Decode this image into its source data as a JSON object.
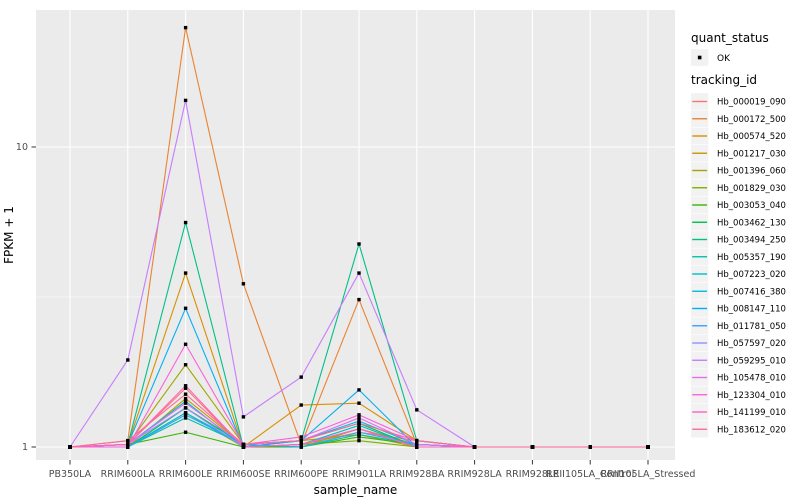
{
  "figure": {
    "background": "#FFFFFF",
    "panel_background": "#EBEBEB",
    "grid_color": "#FFFFFF",
    "tick_mark_color": "#333333",
    "tick_label_color": "#4D4D4D",
    "axis_title_color": "#000000",
    "point_color": "#000000",
    "legend_key_background": "#F2F2F2"
  },
  "chart_data": {
    "type": "line",
    "title": "",
    "xlabel": "sample_name",
    "ylabel": "FPKM + 1",
    "y_scale": "log10",
    "y_ticks": [
      1,
      10
    ],
    "y_minor_ticks": [
      3.1623
    ],
    "ylim": [
      0.905,
      28.5
    ],
    "grid": true,
    "legend_position": "right",
    "legend": {
      "quant_status_title": "quant_status",
      "quant_status_items": [
        {
          "label": "OK",
          "marker": "black-square"
        }
      ],
      "tracking_id_title": "tracking_id"
    },
    "categories": [
      "PB350LA",
      "RRIM600LA",
      "RRIM600LE",
      "RRIM600SE",
      "RRIM600PE",
      "RRIM901LA",
      "RRIM928BA",
      "RRIM928LA",
      "RRIM928LE",
      "RRII105LA_Control",
      "RRII105LA_Stressed"
    ],
    "series": [
      {
        "name": "Hb_000019_090",
        "color": "#F8766D",
        "values": [
          1,
          1.02,
          1.57,
          1,
          1.02,
          1.12,
          1.05,
          1,
          1,
          1,
          1
        ]
      },
      {
        "name": "Hb_000172_500",
        "color": "#EA8331",
        "values": [
          1,
          1.05,
          25,
          3.5,
          1.02,
          3.1,
          1.02,
          1,
          1,
          1,
          1
        ]
      },
      {
        "name": "Hb_000574_520",
        "color": "#D89000",
        "values": [
          1,
          1.02,
          3.8,
          1,
          1.38,
          1.4,
          1.05,
          1,
          1,
          1,
          1
        ]
      },
      {
        "name": "Hb_001217_030",
        "color": "#C09B00",
        "values": [
          1,
          1,
          1.45,
          1.02,
          1.05,
          1.1,
          1,
          1,
          1,
          1,
          1
        ]
      },
      {
        "name": "Hb_001396_060",
        "color": "#A3A500",
        "values": [
          1,
          1.02,
          1.88,
          1.02,
          1,
          1.15,
          1.02,
          1,
          1,
          1,
          1
        ]
      },
      {
        "name": "Hb_001829_030",
        "color": "#7CAE00",
        "values": [
          1,
          1,
          1.3,
          1,
          1.02,
          1.05,
          1,
          1,
          1,
          1,
          1
        ]
      },
      {
        "name": "Hb_003053_040",
        "color": "#39B600",
        "values": [
          1,
          1.02,
          1.12,
          1,
          1,
          1.08,
          1.02,
          1,
          1,
          1,
          1
        ]
      },
      {
        "name": "Hb_003462_130",
        "color": "#00BB4E",
        "values": [
          1,
          1,
          1.35,
          1.02,
          1.05,
          1.2,
          1,
          1,
          1,
          1,
          1
        ]
      },
      {
        "name": "Hb_003494_250",
        "color": "#00C087",
        "values": [
          1,
          1.02,
          5.6,
          1,
          1.05,
          4.75,
          1.05,
          1,
          1,
          1,
          1
        ]
      },
      {
        "name": "Hb_005357_190",
        "color": "#00C1A3",
        "values": [
          1,
          1,
          1.25,
          1.02,
          1,
          1.1,
          1.02,
          1,
          1,
          1,
          1
        ]
      },
      {
        "name": "Hb_007223_020",
        "color": "#00BFC4",
        "values": [
          1,
          1.02,
          1.42,
          1,
          1.02,
          1.18,
          1,
          1,
          1,
          1,
          1
        ]
      },
      {
        "name": "Hb_007416_380",
        "color": "#00BAE0",
        "values": [
          1,
          1,
          1.3,
          1.02,
          1.05,
          1.22,
          1.02,
          1,
          1,
          1,
          1
        ]
      },
      {
        "name": "Hb_008147_110",
        "color": "#00B0F6",
        "values": [
          1,
          1.02,
          2.9,
          1,
          1.05,
          1.55,
          1,
          1,
          1,
          1,
          1
        ]
      },
      {
        "name": "Hb_011781_050",
        "color": "#35A2FF",
        "values": [
          1,
          1,
          1.28,
          1.02,
          1,
          1.12,
          1.02,
          1,
          1,
          1,
          1
        ]
      },
      {
        "name": "Hb_057597_020",
        "color": "#9590FF",
        "values": [
          1,
          1.02,
          1.35,
          1,
          1.02,
          1.15,
          1,
          1,
          1,
          1,
          1
        ]
      },
      {
        "name": "Hb_059295_010",
        "color": "#C77CFF",
        "values": [
          1,
          1.95,
          14.3,
          1.26,
          1.71,
          3.8,
          1.33,
          1,
          1,
          1,
          1
        ]
      },
      {
        "name": "Hb_105478_010",
        "color": "#E76BF3",
        "values": [
          1,
          1.02,
          1.4,
          1.02,
          1.05,
          1.25,
          1.02,
          1,
          1,
          1,
          1
        ]
      },
      {
        "name": "Hb_123304_010",
        "color": "#FA62DB",
        "values": [
          1,
          1,
          2.2,
          1.02,
          1.08,
          1.28,
          1.05,
          1,
          1,
          1,
          1
        ]
      },
      {
        "name": "Hb_141199_010",
        "color": "#FF62BC",
        "values": [
          1,
          1.02,
          1.6,
          1,
          1.02,
          1.15,
          1,
          1,
          1,
          1,
          1
        ]
      },
      {
        "name": "Hb_183612_020",
        "color": "#FF6A98",
        "values": [
          1,
          1.05,
          1.5,
          1.02,
          1.05,
          1.2,
          1.05,
          1,
          1,
          1,
          1
        ]
      }
    ]
  }
}
